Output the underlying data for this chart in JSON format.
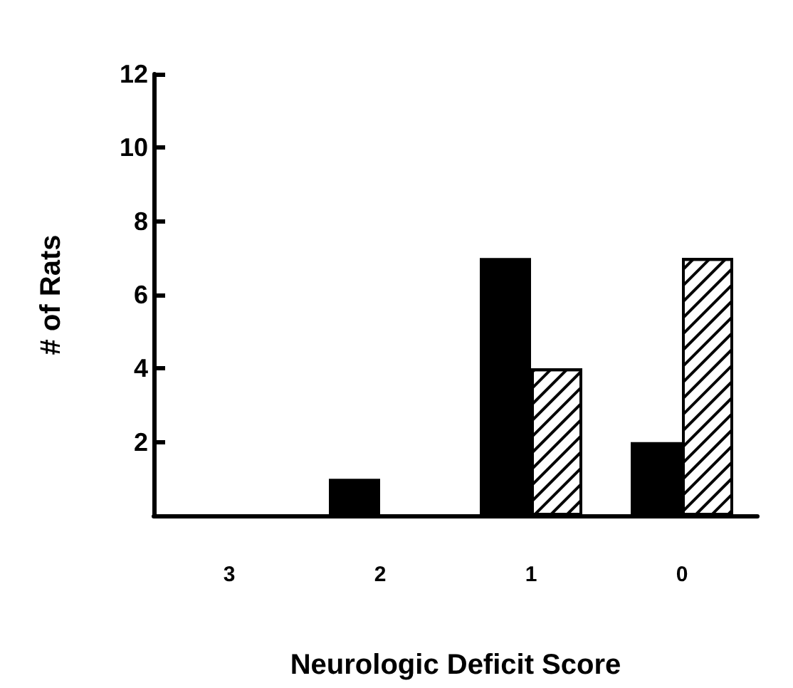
{
  "chart_data": {
    "type": "bar",
    "xlabel": "Neurologic Deficit Score",
    "ylabel": "# of Rats",
    "categories": [
      "3",
      "2",
      "1",
      "0"
    ],
    "series": [
      {
        "color": "#000000",
        "values": [
          0,
          1,
          7,
          2
        ]
      },
      {
        "color": "#ffffff",
        "values": [
          0,
          0,
          4,
          7
        ]
      }
    ],
    "ylim": [
      0,
      12
    ],
    "yticks": [
      2,
      4,
      6,
      8,
      10,
      12
    ]
  }
}
